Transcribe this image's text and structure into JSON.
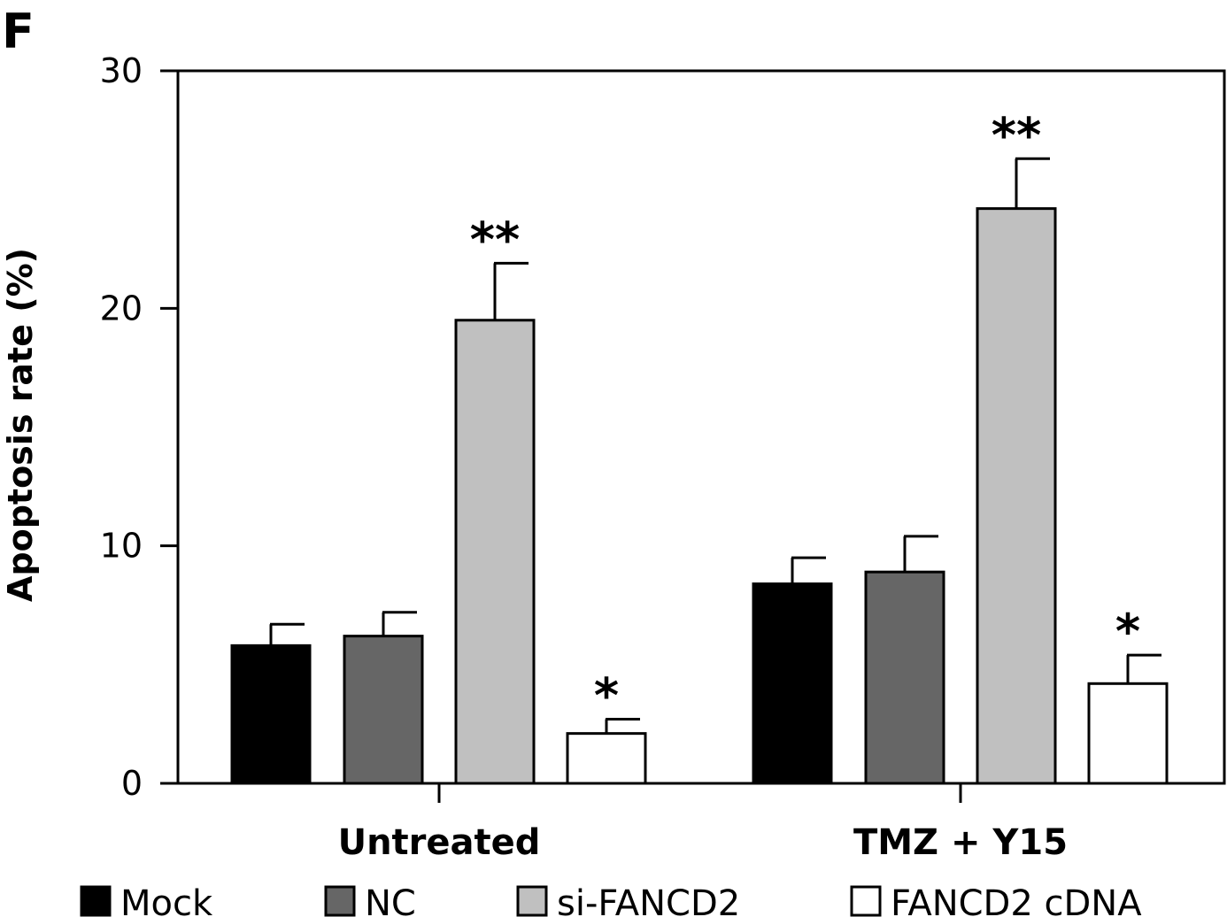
{
  "panel_label": "F",
  "chart_data": {
    "type": "bar",
    "title": "",
    "xlabel": "",
    "ylabel": "Apoptosis rate (%)",
    "ylim": [
      0,
      30
    ],
    "yticks": [
      0,
      10,
      20,
      30
    ],
    "grid": false,
    "legend_position": "bottom",
    "categories": [
      "Untreated",
      "TMZ + Y15"
    ],
    "series": [
      {
        "name": "Mock",
        "color": "#000000",
        "values": [
          5.8,
          8.4
        ],
        "errors": [
          0.9,
          1.1
        ],
        "significance": [
          "",
          ""
        ]
      },
      {
        "name": "NC",
        "color": "#666666",
        "values": [
          6.2,
          8.9
        ],
        "errors": [
          1.0,
          1.5
        ],
        "significance": [
          "",
          ""
        ]
      },
      {
        "name": "si-FANCD2",
        "color": "#c0c0c0",
        "values": [
          19.5,
          24.2
        ],
        "errors": [
          2.4,
          2.1
        ],
        "significance": [
          "**",
          "**"
        ]
      },
      {
        "name": "FANCD2 cDNA",
        "color": "#ffffff",
        "values": [
          2.1,
          4.2
        ],
        "errors": [
          0.6,
          1.2
        ],
        "significance": [
          "*",
          "*"
        ]
      }
    ]
  }
}
